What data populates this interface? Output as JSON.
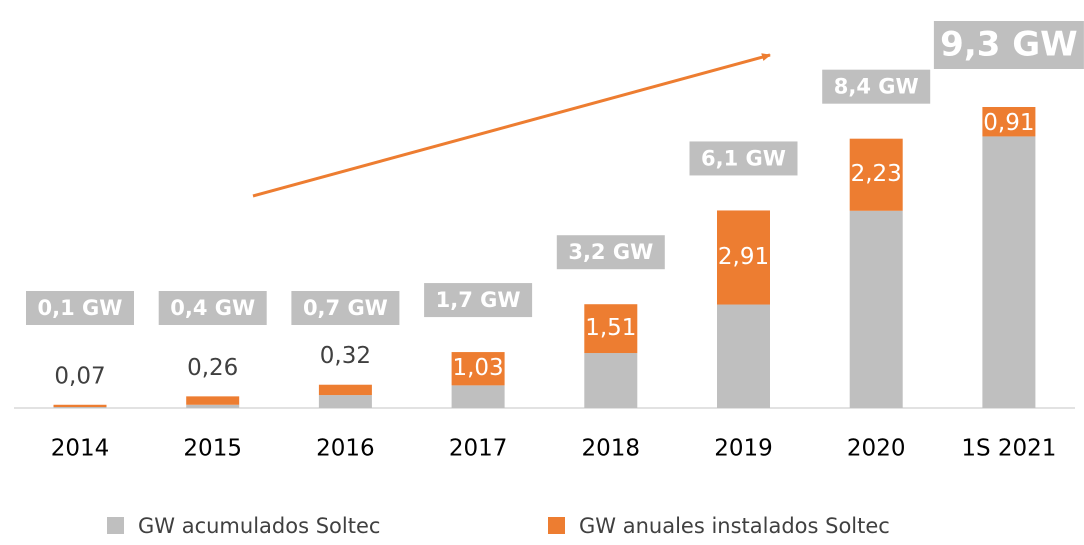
{
  "chart_data": {
    "type": "stacked_bar",
    "categories": [
      "2014",
      "2015",
      "2016",
      "2017",
      "2018",
      "2019",
      "2020",
      "1S 2021"
    ],
    "series": [
      {
        "name": "GW acumulados Soltec",
        "color": "#bfbfbf",
        "values": [
          0.03,
          0.1,
          0.4,
          0.7,
          1.7,
          3.2,
          6.1,
          8.4
        ]
      },
      {
        "name": "GW anuales instalados Soltec",
        "color": "#ed7d31",
        "values": [
          0.07,
          0.26,
          0.32,
          1.03,
          1.51,
          2.91,
          2.23,
          0.91
        ],
        "value_labels": [
          "0,07",
          "0,26",
          "0,32",
          "1,03",
          "1,51",
          "2,91",
          "2,23",
          "0,91"
        ]
      }
    ],
    "total_labels": [
      "0,1 GW",
      "0,4 GW",
      "0,7 GW",
      "1,7 GW",
      "3,2 GW",
      "6,1 GW",
      "8,4 GW",
      "9,3 GW"
    ]
  }
}
